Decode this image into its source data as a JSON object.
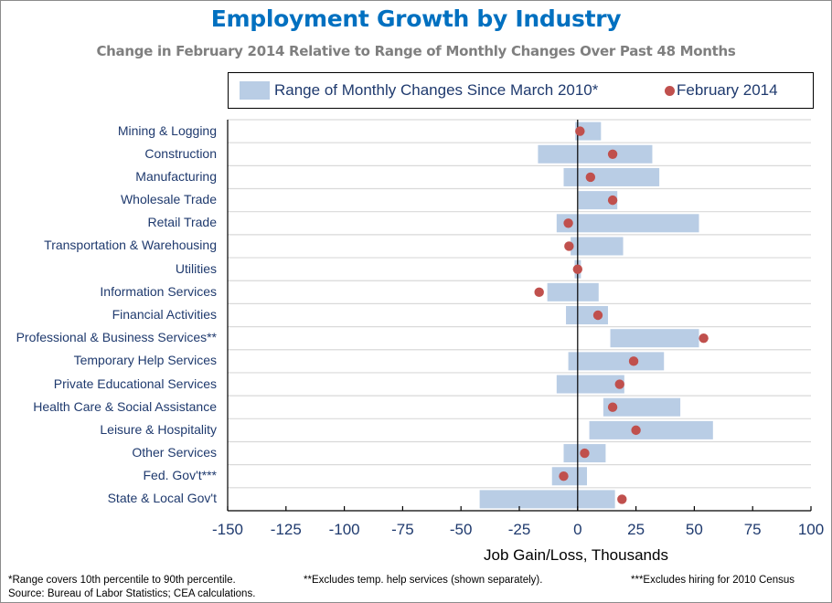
{
  "chart_data": {
    "type": "bar",
    "subtype": "horizontal-range-with-dots",
    "title": "Employment Growth by Industry",
    "subtitle": "Change in February 2014 Relative to Range of Monthly Changes Over Past 48 Months",
    "xlabel": "Job Gain/Loss, Thousands",
    "ylabel": "",
    "xlim": [
      -150,
      100
    ],
    "xticks": [
      -150,
      -125,
      -100,
      -75,
      -50,
      -25,
      0,
      25,
      50,
      75,
      100
    ],
    "xtick_labels": [
      "-150",
      "-125",
      "-100",
      "-75",
      "-50",
      "-25",
      "0",
      "25",
      "50",
      "75",
      "100"
    ],
    "grid": "horizontal",
    "legend_position": "top",
    "legend": [
      {
        "name": "Range of Monthly Changes Since March 2010*",
        "marker": "bar",
        "color": "#B9CDE5"
      },
      {
        "name": "February 2014",
        "marker": "dot",
        "color": "#C0504D"
      }
    ],
    "categories": [
      "Mining & Logging",
      "Construction",
      "Manufacturing",
      "Wholesale Trade",
      "Retail Trade",
      "Transportation & Warehousing",
      "Utilities",
      "Information Services",
      "Financial Activities",
      "Professional & Business Services**",
      "Temporary Help Services",
      "Private Educational Services",
      "Health Care & Social Assistance",
      "Leisure & Hospitality",
      "Other Services",
      "Fed. Gov't***",
      "State & Local Gov't"
    ],
    "series": [
      {
        "name": "Range of Monthly Changes Since March 2010* (10th percentile)",
        "values": [
          -1,
          -17,
          -6,
          0.3,
          -9,
          -3,
          -1.3,
          -13,
          -5,
          14,
          -4,
          -9,
          11,
          5,
          -6,
          -11,
          -42
        ]
      },
      {
        "name": "Range of Monthly Changes Since March 2010* (90th percentile)",
        "values": [
          10,
          32,
          35,
          17,
          52,
          19.5,
          1.4,
          9,
          13,
          52,
          37,
          20,
          44,
          58,
          12,
          4,
          16
        ]
      },
      {
        "name": "February 2014",
        "values": [
          1,
          15,
          5.5,
          15,
          -4,
          -3.7,
          0,
          -16.5,
          8.7,
          54,
          24,
          18,
          15,
          25,
          3,
          -6,
          19
        ]
      }
    ]
  },
  "footnotes": {
    "range_note": "*Range covers 10th percentile to 90th percentile.",
    "temp_note": "**Excludes temp. help services (shown separately).",
    "census_note": "***Excludes hiring for 2010 Census",
    "source": "Source: Bureau of Labor Statistics; CEA calculations."
  }
}
